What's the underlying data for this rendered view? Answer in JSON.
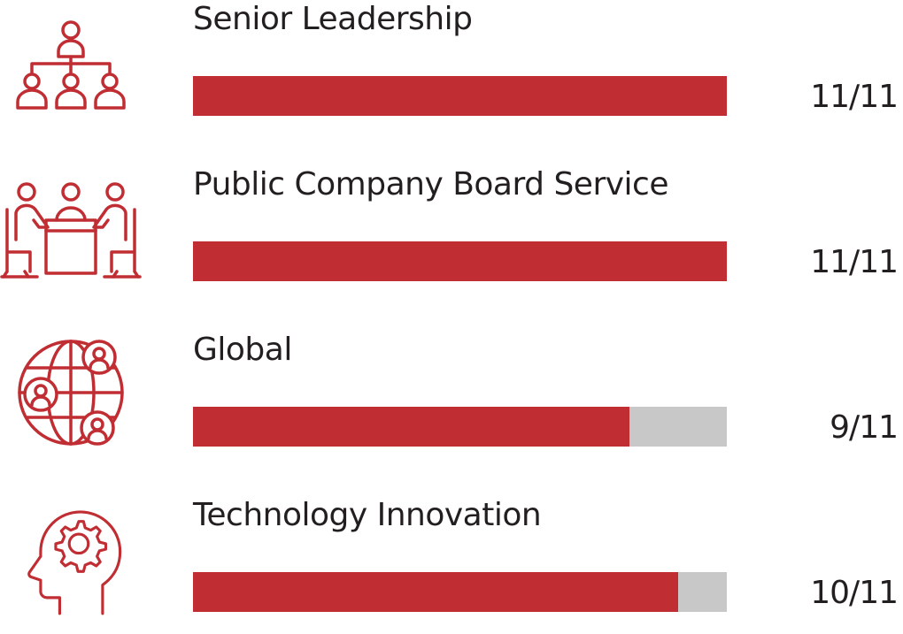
{
  "colors": {
    "accent": "#c02e34",
    "track": "#c8c8c8",
    "text": "#231f20"
  },
  "chart_data": {
    "type": "bar",
    "orientation": "horizontal",
    "max": 11,
    "categories": [
      "Senior Leadership",
      "Public Company Board Service",
      "Global",
      "Technology Innovation"
    ],
    "values": [
      11,
      11,
      9,
      10
    ],
    "value_labels": [
      "11/11",
      "11/11",
      "9/11",
      "10/11"
    ],
    "icons": [
      "org-chart-icon",
      "boardroom-icon",
      "global-network-icon",
      "head-gear-icon"
    ]
  }
}
